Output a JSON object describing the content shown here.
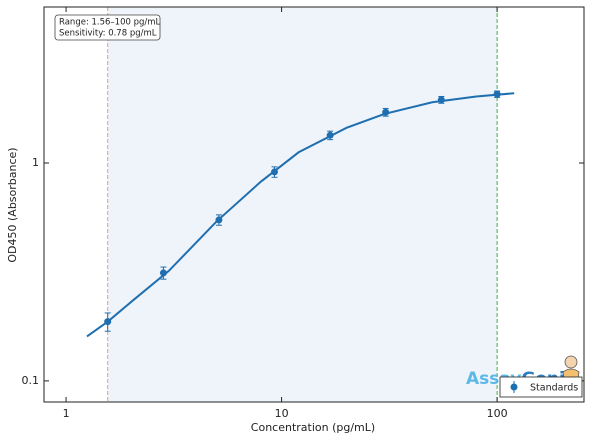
{
  "chart_data": {
    "type": "scatter",
    "xlabel": "Concentration (pg/mL)",
    "ylabel": "OD450 (Absorbance)",
    "xscale": "log",
    "yscale": "log",
    "xlim": [
      0.79,
      253
    ],
    "ylim": [
      0.08,
      5.2
    ],
    "xticks": [
      1,
      10,
      100
    ],
    "yticks": [
      0.1,
      1
    ],
    "series": [
      {
        "name": "Standards",
        "color": "#1f6fb0",
        "x": [
          1.56,
          2.83,
          5.12,
          9.27,
          16.8,
          30.4,
          55.1,
          100
        ],
        "values": [
          0.187,
          0.313,
          0.548,
          0.91,
          1.34,
          1.71,
          1.95,
          2.07
        ],
        "errors": [
          0.018,
          0.02,
          0.03,
          0.05,
          0.06,
          0.07,
          0.07,
          0.07
        ]
      }
    ],
    "fit": {
      "color": "#1f6fb0",
      "x": [
        1.25,
        1.56,
        2,
        3,
        5,
        8,
        12,
        20,
        30,
        50,
        80,
        120
      ],
      "values": [
        0.16,
        0.187,
        0.23,
        0.32,
        0.54,
        0.82,
        1.12,
        1.45,
        1.68,
        1.9,
        2.02,
        2.09
      ]
    },
    "shaded_range": {
      "x": [
        1.56,
        100
      ],
      "color": "#eef4fa"
    },
    "vlines": [
      {
        "value": 1.56,
        "color": "#e8a070"
      },
      {
        "value": 100,
        "color": "#40b040"
      }
    ],
    "annotation": [
      "Range: 1.56–100 pg/mL",
      "Sensitivity: 0.78 pg/mL"
    ],
    "legend": "lower right",
    "logo": [
      "Assay",
      "Genie"
    ]
  }
}
